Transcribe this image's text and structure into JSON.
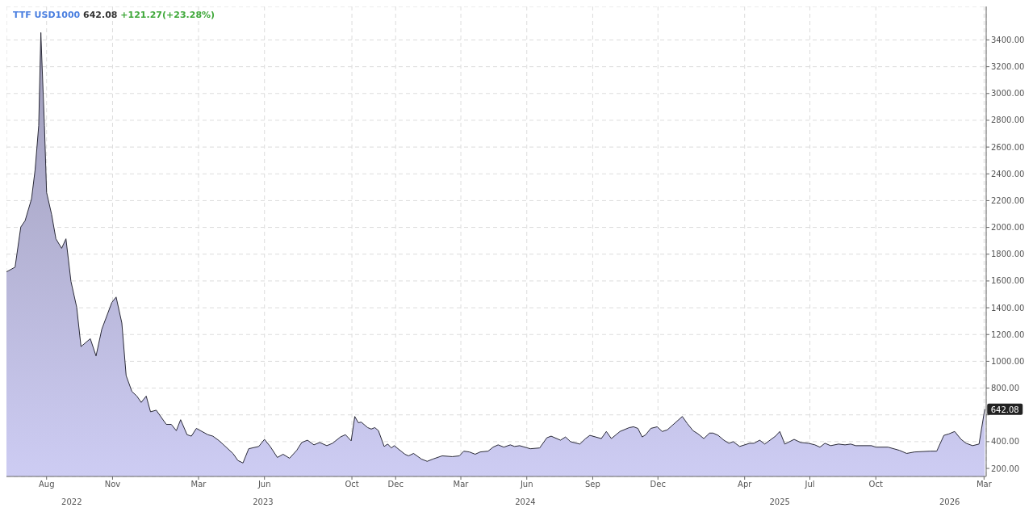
{
  "chart_data": {
    "type": "area",
    "title": "TTF USD1000",
    "subtitle": "642.08 +121.27(+23.28%)",
    "x": [
      "2022-06-06",
      "2022-06-18",
      "2022-06-26",
      "2022-07-02",
      "2022-07-11",
      "2022-07-16",
      "2022-07-21",
      "2022-07-24",
      "2022-07-25",
      "2022-07-29",
      "2022-08-01",
      "2022-08-08",
      "2022-08-14",
      "2022-08-22",
      "2022-08-28",
      "2022-09-04",
      "2022-09-12",
      "2022-09-18",
      "2022-10-01",
      "2022-10-09",
      "2022-10-17",
      "2022-10-31",
      "2022-11-06",
      "2022-11-14",
      "2022-11-20",
      "2022-11-28",
      "2022-12-05",
      "2022-12-11",
      "2022-12-18",
      "2022-12-24",
      "2023-01-01",
      "2023-01-15",
      "2023-01-22",
      "2023-01-29",
      "2023-02-04",
      "2023-02-13",
      "2023-02-19",
      "2023-02-26",
      "2023-03-14",
      "2023-03-21",
      "2023-03-30",
      "2023-04-18",
      "2023-04-25",
      "2023-05-02",
      "2023-05-10",
      "2023-05-24",
      "2023-06-01",
      "2023-06-09",
      "2023-06-19",
      "2023-06-27",
      "2023-07-06",
      "2023-07-16",
      "2023-07-23",
      "2023-07-31",
      "2023-08-09",
      "2023-08-17",
      "2023-08-27",
      "2023-09-04",
      "2023-09-15",
      "2023-09-22",
      "2023-09-30",
      "2023-10-05",
      "2023-10-10",
      "2023-10-14",
      "2023-10-23",
      "2023-10-28",
      "2023-11-02",
      "2023-11-07",
      "2023-11-15",
      "2023-11-20",
      "2023-11-25",
      "2023-11-29",
      "2023-12-14",
      "2023-12-19",
      "2023-12-26",
      "2024-01-06",
      "2024-01-14",
      "2024-01-22",
      "2024-02-04",
      "2024-02-18",
      "2024-02-28",
      "2024-03-05",
      "2024-03-13",
      "2024-03-21",
      "2024-03-28",
      "2024-04-08",
      "2024-04-15",
      "2024-04-22",
      "2024-04-30",
      "2024-05-09",
      "2024-05-15",
      "2024-05-22",
      "2024-06-06",
      "2024-06-19",
      "2024-06-29",
      "2024-07-05",
      "2024-07-18",
      "2024-07-25",
      "2024-08-01",
      "2024-08-14",
      "2024-08-22",
      "2024-08-28",
      "2024-09-13",
      "2024-09-20",
      "2024-09-27",
      "2024-10-09",
      "2024-10-22",
      "2024-10-28",
      "2024-11-03",
      "2024-11-09",
      "2024-11-14",
      "2024-11-21",
      "2024-11-30",
      "2024-12-07",
      "2024-12-14",
      "2025-01-04",
      "2025-01-11",
      "2025-01-19",
      "2025-01-26",
      "2025-02-03",
      "2025-02-11",
      "2025-02-16",
      "2025-02-23",
      "2025-03-03",
      "2025-03-10",
      "2025-03-16",
      "2025-03-25",
      "2025-04-08",
      "2025-04-14",
      "2025-04-22",
      "2025-04-29",
      "2025-05-14",
      "2025-05-20",
      "2025-05-27",
      "2025-06-09",
      "2025-06-18",
      "2025-06-29",
      "2025-07-08",
      "2025-07-15",
      "2025-07-22",
      "2025-07-30",
      "2025-08-10",
      "2025-08-19",
      "2025-08-27",
      "2025-09-03",
      "2025-09-25",
      "2025-10-01",
      "2025-10-18",
      "2025-11-03",
      "2025-11-13",
      "2025-11-24",
      "2025-12-16",
      "2025-12-25",
      "2026-01-04",
      "2026-01-11",
      "2026-01-19",
      "2026-01-28",
      "2026-02-04",
      "2026-02-13",
      "2026-02-22",
      "2026-03-02"
    ],
    "series": [
      {
        "color": "#cdccf3",
        "values": [
          1668,
          1703,
          2003,
          2050,
          2214,
          2431,
          2760,
          3455,
          3306,
          2760,
          2261,
          2097,
          1915,
          1844,
          1915,
          1597,
          1404,
          1110,
          1169,
          1040,
          1239,
          1439,
          1480,
          1286,
          893,
          775,
          740,
          693,
          740,
          623,
          635,
          529,
          529,
          482,
          564,
          452,
          441,
          499,
          452,
          441,
          406,
          312,
          259,
          241,
          347,
          364,
          417,
          364,
          282,
          306,
          276,
          335,
          394,
          411,
          376,
          394,
          370,
          388,
          435,
          452,
          406,
          588,
          541,
          546,
          505,
          494,
          505,
          482,
          364,
          382,
          353,
          370,
          306,
          294,
          312,
          270,
          253,
          270,
          294,
          288,
          294,
          329,
          323,
          306,
          323,
          329,
          359,
          376,
          359,
          376,
          364,
          370,
          347,
          353,
          429,
          441,
          411,
          435,
          400,
          382,
          423,
          447,
          423,
          476,
          423,
          476,
          505,
          511,
          499,
          435,
          452,
          499,
          511,
          476,
          488,
          588,
          535,
          482,
          458,
          423,
          464,
          464,
          447,
          411,
          388,
          400,
          364,
          388,
          388,
          411,
          382,
          441,
          476,
          382,
          417,
          394,
          388,
          376,
          359,
          388,
          370,
          382,
          376,
          382,
          370,
          370,
          359,
          359,
          335,
          312,
          323,
          329,
          329,
          447,
          458,
          476,
          417,
          388,
          370,
          382,
          642.08
        ]
      }
    ],
    "xlim": [
      "2022-06-06",
      "2026-03-04"
    ],
    "xticks": [
      {
        "value": "2022-08-01",
        "label": "Aug"
      },
      {
        "value": "2022-11-01",
        "label": "Nov"
      },
      {
        "value": "2023-03-01",
        "label": "Mar"
      },
      {
        "value": "2023-06-01",
        "label": "Jun"
      },
      {
        "value": "2023-10-01",
        "label": "Oct"
      },
      {
        "value": "2023-12-01",
        "label": "Dec"
      },
      {
        "value": "2024-03-01",
        "label": "Mar"
      },
      {
        "value": "2024-06-01",
        "label": "Jun"
      },
      {
        "value": "2024-09-01",
        "label": "Sep"
      },
      {
        "value": "2024-12-01",
        "label": "Dec"
      },
      {
        "value": "2025-04-01",
        "label": "Apr"
      },
      {
        "value": "2025-07-01",
        "label": "Jul"
      },
      {
        "value": "2025-10-01",
        "label": "Oct"
      },
      {
        "value": "2026-03-01",
        "label": "Mar"
      }
    ],
    "x2lim": [
      "2022-06-06",
      "2026-03-04"
    ],
    "x2ticks": [
      {
        "value": "2022-09-05",
        "label": "2022"
      },
      {
        "value": "2023-05-30",
        "label": "2023"
      },
      {
        "value": "2024-05-30",
        "label": "2024"
      },
      {
        "value": "2025-05-20",
        "label": "2025"
      },
      {
        "value": "2026-01-12",
        "label": "2026"
      }
    ],
    "ylim": [
      140,
      3650
    ],
    "yticks": [
      {
        "value": 200,
        "label": "200.00"
      },
      {
        "value": 400,
        "label": "400.00"
      },
      {
        "value": 600,
        "label": null
      },
      {
        "value": 800,
        "label": "800.00"
      },
      {
        "value": 1000,
        "label": "1000.00"
      },
      {
        "value": 1200,
        "label": "1200.00"
      },
      {
        "value": 1400,
        "label": "1400.00"
      },
      {
        "value": 1600,
        "label": "1600.00"
      },
      {
        "value": 1800,
        "label": "1800.00"
      },
      {
        "value": 2000,
        "label": "2000.00"
      },
      {
        "value": 2200,
        "label": "2200.00"
      },
      {
        "value": 2400,
        "label": "2400.00"
      },
      {
        "value": 2600,
        "label": "2600.00"
      },
      {
        "value": 2800,
        "label": "2800.00"
      },
      {
        "value": 3000,
        "label": "3000.00"
      },
      {
        "value": 3200,
        "label": "3200.00"
      },
      {
        "value": 3400,
        "label": "3400.00"
      }
    ],
    "grid": true,
    "annotations": [
      {
        "text": "642.08",
        "x": "2026-03-02",
        "y": 642.08
      }
    ]
  }
}
